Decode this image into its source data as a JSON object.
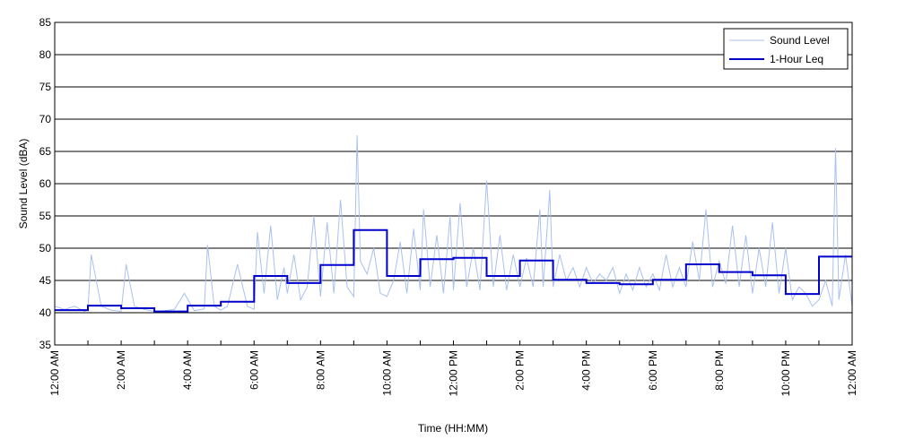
{
  "chart_data": {
    "type": "line",
    "title": "",
    "xlabel": "Time (HH:MM)",
    "ylabel": "Sound Level (dBA)",
    "xlim": [
      0,
      24
    ],
    "ylim": [
      35,
      85
    ],
    "grid": "horizontal",
    "legend_position": "top-right",
    "x_ticks": [
      0,
      2,
      4,
      6,
      8,
      10,
      12,
      14,
      16,
      18,
      20,
      22,
      24
    ],
    "x_tick_labels": [
      "12:00 AM",
      "2:00 AM",
      "4:00 AM",
      "6:00 AM",
      "8:00 AM",
      "10:00 AM",
      "12:00 PM",
      "2:00 PM",
      "4:00 PM",
      "6:00 PM",
      "8:00 PM",
      "10:00 PM",
      "12:00 AM"
    ],
    "y_ticks": [
      35,
      40,
      45,
      50,
      55,
      60,
      65,
      70,
      75,
      80,
      85
    ],
    "series": [
      {
        "name": "Sound Level",
        "color": "#a9c1ef",
        "x_hours": [
          0,
          0.3,
          0.6,
          0.9,
          1.0,
          1.1,
          1.4,
          1.7,
          2.0,
          2.15,
          2.4,
          2.7,
          3.0,
          3.3,
          3.6,
          3.9,
          4.2,
          4.5,
          4.6,
          4.8,
          5.0,
          5.2,
          5.5,
          5.8,
          6.0,
          6.1,
          6.3,
          6.5,
          6.7,
          6.9,
          7.0,
          7.2,
          7.4,
          7.6,
          7.8,
          8.0,
          8.2,
          8.4,
          8.6,
          8.8,
          9.0,
          9.1,
          9.2,
          9.4,
          9.6,
          9.8,
          10.0,
          10.2,
          10.4,
          10.6,
          10.8,
          11.0,
          11.1,
          11.3,
          11.5,
          11.7,
          11.9,
          12.0,
          12.2,
          12.4,
          12.6,
          12.8,
          13.0,
          13.2,
          13.4,
          13.6,
          13.8,
          14.0,
          14.2,
          14.4,
          14.6,
          14.7,
          14.9,
          15.0,
          15.2,
          15.4,
          15.6,
          15.8,
          16.0,
          16.2,
          16.4,
          16.6,
          16.8,
          17.0,
          17.2,
          17.4,
          17.6,
          17.8,
          18.0,
          18.2,
          18.4,
          18.6,
          18.8,
          19.0,
          19.2,
          19.4,
          19.6,
          19.8,
          20.0,
          20.2,
          20.4,
          20.6,
          20.8,
          21.0,
          21.2,
          21.4,
          21.6,
          21.8,
          22.0,
          22.2,
          22.4,
          22.6,
          22.8,
          23.0,
          23.2,
          23.4,
          23.5,
          23.6,
          23.8,
          24.0
        ],
        "values": [
          41,
          40.5,
          41,
          40.2,
          40.5,
          49,
          41,
          40.4,
          40.2,
          47.5,
          41,
          40.5,
          40.2,
          40.3,
          40.5,
          43,
          40.3,
          40.6,
          50.5,
          41,
          40.4,
          41,
          47.5,
          41,
          40.5,
          52.5,
          43,
          53.5,
          42,
          47,
          43,
          49,
          42,
          44,
          55,
          42.5,
          54,
          43,
          57.5,
          44,
          42.5,
          67.5,
          48,
          46,
          50,
          43,
          42.5,
          45,
          51,
          43,
          53,
          43.5,
          56,
          44,
          52,
          43,
          55,
          43.5,
          57,
          44,
          50,
          43.5,
          60.5,
          44,
          52,
          43.5,
          49,
          44,
          48.5,
          44,
          56,
          44,
          59,
          44,
          49,
          45,
          47,
          44,
          47,
          44.5,
          46,
          45,
          47,
          43,
          46,
          43.5,
          47,
          44,
          46,
          43.5,
          49,
          44,
          47,
          44,
          51,
          45,
          56,
          44,
          48,
          44.5,
          53.5,
          44,
          52,
          43,
          50,
          44,
          54,
          43,
          50,
          42,
          44,
          43,
          41,
          42,
          45,
          41,
          65.5,
          42,
          49,
          41
        ]
      },
      {
        "name": "1-Hour Leq",
        "color": "#0000cc",
        "hours": [
          0,
          1,
          2,
          3,
          4,
          5,
          6,
          7,
          8,
          9,
          10,
          11,
          12,
          13,
          14,
          15,
          16,
          17,
          18,
          19,
          20,
          21,
          22,
          23
        ],
        "values": [
          40.4,
          41.1,
          40.7,
          40.2,
          41.1,
          41.7,
          45.7,
          44.6,
          47.4,
          52.8,
          45.7,
          48.3,
          48.5,
          45.7,
          48.1,
          45.1,
          44.6,
          44.4,
          45.1,
          47.5,
          46.3,
          45.8,
          42.9,
          48.7
        ]
      }
    ]
  }
}
